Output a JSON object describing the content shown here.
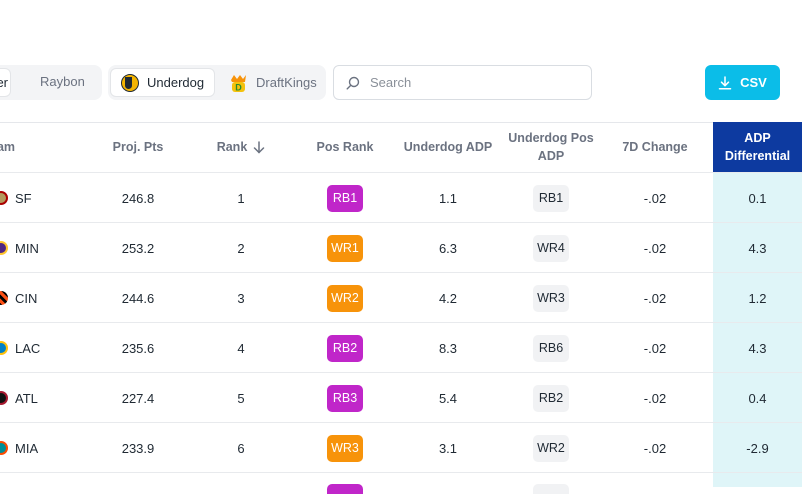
{
  "toolbar": {
    "projection_options": [
      {
        "label": "er",
        "selected": true
      },
      {
        "label": "Raybon",
        "selected": false
      }
    ],
    "sportsbooks": [
      {
        "label": "Underdog",
        "icon": "underdog-logo-icon",
        "selected": true
      },
      {
        "label": "DraftKings",
        "icon": "draftkings-logo-icon",
        "selected": false
      }
    ],
    "search_placeholder": "Search",
    "search_value": "",
    "csv_label": "CSV",
    "accent_color": "#0bbde8"
  },
  "table": {
    "columns": {
      "team": "eam",
      "proj_pts": "Proj. Pts",
      "rank": "Rank",
      "pos_rank": "Pos Rank",
      "underdog_adp": "Underdog ADP",
      "underdog_pos_adp": "Underdog Pos ADP",
      "change_7d": "7D Change",
      "adp_differential": "ADP Differential"
    },
    "sort": {
      "column": "rank",
      "direction": "ascending"
    },
    "header_highlight_color": "#0d3aa0",
    "position_colors": {
      "RB": "#c026c9",
      "WR": "#f7930a"
    },
    "rows": [
      {
        "team": "SF",
        "team_icon": "49ers-logo-icon",
        "proj_pts": "246.8",
        "rank": "1",
        "pos_rank": "RB1",
        "pos": "RB",
        "underdog_adp": "1.1",
        "underdog_pos_adp": "RB1",
        "change_7d": "-.02",
        "adp_differential": "0.1"
      },
      {
        "team": "MIN",
        "team_icon": "vikings-logo-icon",
        "proj_pts": "253.2",
        "rank": "2",
        "pos_rank": "WR1",
        "pos": "WR",
        "underdog_adp": "6.3",
        "underdog_pos_adp": "WR4",
        "change_7d": "-.02",
        "adp_differential": "4.3"
      },
      {
        "team": "CIN",
        "team_icon": "bengals-logo-icon",
        "proj_pts": "244.6",
        "rank": "3",
        "pos_rank": "WR2",
        "pos": "WR",
        "underdog_adp": "4.2",
        "underdog_pos_adp": "WR3",
        "change_7d": "-.02",
        "adp_differential": "1.2"
      },
      {
        "team": "LAC",
        "team_icon": "chargers-logo-icon",
        "proj_pts": "235.6",
        "rank": "4",
        "pos_rank": "RB2",
        "pos": "RB",
        "underdog_adp": "8.3",
        "underdog_pos_adp": "RB6",
        "change_7d": "-.02",
        "adp_differential": "4.3"
      },
      {
        "team": "ATL",
        "team_icon": "falcons-logo-icon",
        "proj_pts": "227.4",
        "rank": "5",
        "pos_rank": "RB3",
        "pos": "RB",
        "underdog_adp": "5.4",
        "underdog_pos_adp": "RB2",
        "change_7d": "-.02",
        "adp_differential": "0.4"
      },
      {
        "team": "MIA",
        "team_icon": "dolphins-logo-icon",
        "proj_pts": "233.9",
        "rank": "6",
        "pos_rank": "WR3",
        "pos": "WR",
        "underdog_adp": "3.1",
        "underdog_pos_adp": "WR2",
        "change_7d": "-.02",
        "adp_differential": "-2.9"
      }
    ]
  }
}
